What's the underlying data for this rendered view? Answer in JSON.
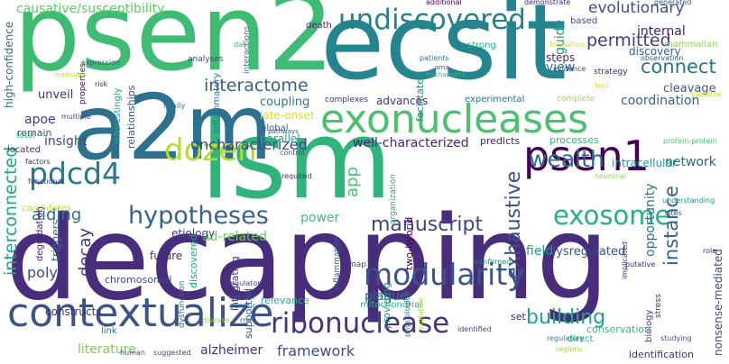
{
  "words": [
    {
      "text": "psen2",
      "color": "#3fbc73"
    },
    {
      "text": "ecsit",
      "color": "#25858e"
    },
    {
      "text": "decapping",
      "color": "#472d7b"
    },
    {
      "text": "lsm",
      "color": "#2fb47c"
    },
    {
      "text": "a2m",
      "color": "#2c718e"
    },
    {
      "text": "exonucleases",
      "color": "#4ac16d"
    },
    {
      "text": "undiscovered",
      "color": "#27808e"
    },
    {
      "text": "psen1",
      "color": "#440154"
    },
    {
      "text": "contextualize",
      "color": "#3b528b"
    },
    {
      "text": "dozen",
      "color": "#b5de2b"
    },
    {
      "text": "pdcd4",
      "color": "#2a788e"
    },
    {
      "text": "hypotheses",
      "color": "#32648e"
    },
    {
      "text": "modularity",
      "color": "#3a548c"
    },
    {
      "text": "ribonuclease",
      "color": "#46327e"
    },
    {
      "text": "exosome",
      "color": "#2ab07f"
    },
    {
      "text": "wealth",
      "color": "#306a8e"
    },
    {
      "text": "manuscript",
      "color": "#404688"
    },
    {
      "text": "exhaustive",
      "color": "#3b528b"
    },
    {
      "text": "building",
      "color": "#21a685"
    },
    {
      "text": "instance",
      "color": "#355f8d"
    },
    {
      "text": "interconnected",
      "color": "#22a884"
    },
    {
      "text": "connect",
      "color": "#2c728e"
    },
    {
      "text": "permitted",
      "color": "#443983"
    },
    {
      "text": "evolutionary",
      "color": "#3c4f8a"
    },
    {
      "text": "causative/susceptibility",
      "color": "#5ec962"
    },
    {
      "text": "interactome",
      "color": "#34618d"
    },
    {
      "text": "decay",
      "color": "#453581"
    },
    {
      "text": "aiding",
      "color": "#2d708e"
    },
    {
      "text": "app",
      "color": "#4fc46a"
    },
    {
      "text": "uncharacterized",
      "color": "#3e4989"
    },
    {
      "text": "framework",
      "color": "#3d4e8a"
    },
    {
      "text": "literature",
      "color": "#7ad151"
    },
    {
      "text": "alzheimer",
      "color": "#46307e"
    },
    {
      "text": "chromosomal",
      "color": "#3e4c8a"
    },
    {
      "text": "plaque",
      "color": "#2d708e"
    },
    {
      "text": "ad-related",
      "color": "#6ece58"
    },
    {
      "text": "opportunity",
      "color": "#2e6f8e"
    },
    {
      "text": "field",
      "color": "#1fa188"
    },
    {
      "text": "nonsense-mediated",
      "color": "#3f4889"
    },
    {
      "text": "unveil",
      "color": "#472f7d"
    },
    {
      "text": "apoe",
      "color": "#443b84"
    },
    {
      "text": "insight",
      "color": "#3e4c8a"
    },
    {
      "text": "well-characterized",
      "color": "#482374"
    },
    {
      "text": "view",
      "color": "#2c738e"
    },
    {
      "text": "network",
      "color": "#33628d"
    },
    {
      "text": "cleavage",
      "color": "#38598c"
    },
    {
      "text": "mammalian",
      "color": "#8fd744"
    },
    {
      "text": "discovery",
      "color": "#32648e"
    },
    {
      "text": "internal",
      "color": "#481c6e"
    },
    {
      "text": "coordination",
      "color": "#31668e"
    },
    {
      "text": "guide",
      "color": "#1f958b"
    },
    {
      "text": "steps",
      "color": "#482878"
    },
    {
      "text": "strong",
      "color": "#28ae80"
    },
    {
      "text": "advances",
      "color": "#46327e"
    },
    {
      "text": "coupling",
      "color": "#2a788e"
    },
    {
      "text": "late-onset",
      "color": "#dde318"
    },
    {
      "text": "global",
      "color": "#34608d"
    },
    {
      "text": "parallel",
      "color": "#22a785"
    },
    {
      "text": "predicts",
      "color": "#482173"
    },
    {
      "text": "processes",
      "color": "#35b779"
    },
    {
      "text": "power",
      "color": "#44bf70"
    },
    {
      "text": "future",
      "color": "#482475"
    },
    {
      "text": "etiology",
      "color": "#414487"
    },
    {
      "text": "dysregulated",
      "color": "#3b518b"
    },
    {
      "text": "intracellular",
      "color": "#1f988b"
    },
    {
      "text": "supported",
      "color": "#3a548c"
    },
    {
      "text": "relevance",
      "color": "#2db27d"
    },
    {
      "text": "constructs",
      "color": "#472c7a"
    },
    {
      "text": "poly",
      "color": "#3e4a89"
    },
    {
      "text": "link",
      "color": "#2a778e"
    },
    {
      "text": "candidates",
      "color": "#c2df23"
    },
    {
      "text": "remain",
      "color": "#3a538b"
    },
    {
      "text": "located",
      "color": "#482979"
    },
    {
      "text": "facilitates",
      "color": "#21918c"
    },
    {
      "text": "high-confidence",
      "color": "#2e6e8e"
    },
    {
      "text": "degradation",
      "color": "#482173"
    },
    {
      "text": "triggers",
      "color": "#2f6c8e"
    },
    {
      "text": "discovered",
      "color": "#21a685"
    },
    {
      "text": "inflammatory",
      "color": "#29798e"
    },
    {
      "text": "relationships",
      "color": "#39558c"
    },
    {
      "text": "interestingly",
      "color": "#22a884"
    },
    {
      "text": "integrating",
      "color": "#453882"
    },
    {
      "text": "providing",
      "color": "#20928c"
    },
    {
      "text": "two-hybrid",
      "color": "#440154"
    },
    {
      "text": "inflammation",
      "color": "#31668e"
    },
    {
      "text": "mitochondrial",
      "color": "#2fb47c"
    },
    {
      "text": "map",
      "color": "#3e4989"
    },
    {
      "text": "set",
      "color": "#482576"
    },
    {
      "text": "direct",
      "color": "#29af7f"
    },
    {
      "text": "biology",
      "color": "#443a83"
    },
    {
      "text": "identification",
      "color": "#472d7b"
    },
    {
      "text": "conservation",
      "color": "#3bbb75"
    },
    {
      "text": "dysfunction",
      "color": "#2e6e8e"
    },
    {
      "text": "properties",
      "color": "#460a5d"
    },
    {
      "text": "interactions",
      "color": "#2c728e"
    },
    {
      "text": "analyses",
      "color": "#404688"
    },
    {
      "text": "death",
      "color": "#481c6e"
    },
    {
      "text": "total",
      "color": "#3dbc74"
    },
    {
      "text": "factors",
      "color": "#482475"
    },
    {
      "text": "based",
      "color": "#3d4e8a"
    },
    {
      "text": "experimental",
      "color": "#2c728e"
    },
    {
      "text": "complexes",
      "color": "#46337f"
    },
    {
      "text": "organization",
      "color": "#2ab07f"
    },
    {
      "text": "loci",
      "color": "#dde318"
    },
    {
      "text": "strategy",
      "color": "#482475"
    },
    {
      "text": "patterns",
      "color": "#c2df23"
    },
    {
      "text": "putative",
      "color": "#481f70"
    },
    {
      "text": "neuronal",
      "color": "#90d743"
    },
    {
      "text": "implicated",
      "color": "#46327e"
    },
    {
      "text": "understanding",
      "color": "#21918c"
    },
    {
      "text": "protein-protein",
      "color": "#4ac16d"
    },
    {
      "text": "regulator",
      "color": "#3e4989"
    },
    {
      "text": "physiological",
      "color": "#2a788e"
    },
    {
      "text": "regulatory",
      "color": "#25858e"
    },
    {
      "text": "regions",
      "color": "#a0da39"
    },
    {
      "text": "human",
      "color": "#3b528b"
    },
    {
      "text": "suggested",
      "color": "#414487"
    },
    {
      "text": "disease",
      "color": "#8fd744"
    },
    {
      "text": "genetic",
      "color": "#2a788e"
    },
    {
      "text": "cellular",
      "color": "#39558c"
    },
    {
      "text": "rna",
      "color": "#2c728e"
    },
    {
      "text": "confirmed",
      "color": "#1f988b"
    },
    {
      "text": "identified",
      "color": "#3f4889"
    },
    {
      "text": "stress",
      "color": "#482878"
    },
    {
      "text": "studying",
      "color": "#3b528b"
    },
    {
      "text": "role",
      "color": "#46327e"
    },
    {
      "text": "sites",
      "color": "#39558c"
    },
    {
      "text": "oxidative",
      "color": "#b5de2b"
    },
    {
      "text": "functional",
      "color": "#443983"
    },
    {
      "text": "multiple",
      "color": "#3e4989"
    },
    {
      "text": "finally",
      "color": "#2a788e"
    },
    {
      "text": "risk",
      "color": "#481f70"
    },
    {
      "text": "expression",
      "color": "#3b528b"
    },
    {
      "text": "molecular",
      "color": "#b5de2b"
    },
    {
      "text": "data",
      "color": "#35b779"
    },
    {
      "text": "pathways",
      "color": "#3e4989"
    },
    {
      "text": "control",
      "color": "#3b528b"
    },
    {
      "text": "required",
      "color": "#46327e"
    },
    {
      "text": "mechanisms",
      "color": "#35b779"
    },
    {
      "text": "arna",
      "color": "#3b528b"
    },
    {
      "text": "complete",
      "color": "#a0da39"
    },
    {
      "text": "evidence",
      "color": "#3e4989"
    },
    {
      "text": "formation",
      "color": "#dde318"
    },
    {
      "text": "observation",
      "color": "#3b528b"
    },
    {
      "text": "generated",
      "color": "#39558c"
    },
    {
      "text": "demonstrate",
      "color": "#482475"
    },
    {
      "text": "additional",
      "color": "#440154"
    },
    {
      "text": "patients",
      "color": "#2a788e"
    }
  ]
}
